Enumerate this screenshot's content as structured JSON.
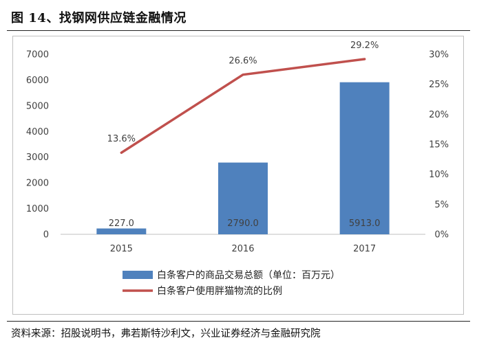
{
  "figure": {
    "title": "图 14、找钢网供应链金融情况",
    "source": "资料来源：招股说明书，弗若斯特沙利文，兴业证券经济与金融研究院"
  },
  "chart_data": {
    "type": "bar+line",
    "categories": [
      "2015",
      "2016",
      "2017"
    ],
    "series": [
      {
        "name": "白条客户的商品交易总额（单位：百万元）",
        "type": "bar",
        "axis": "left",
        "color": "#4f81bd",
        "values": [
          227.0,
          2790.0,
          5913.0
        ],
        "labels": [
          "227.0",
          "2790.0",
          "5913.0"
        ]
      },
      {
        "name": "白条客户使用胖猫物流的比例",
        "type": "line",
        "axis": "right",
        "color": "#c0504d",
        "values": [
          13.6,
          26.6,
          29.2
        ],
        "labels": [
          "13.6%",
          "26.6%",
          "29.2%"
        ]
      }
    ],
    "y_left": {
      "min": 0,
      "max": 7000,
      "ticks": [
        "0",
        "1000",
        "2000",
        "3000",
        "4000",
        "5000",
        "6000",
        "7000"
      ]
    },
    "y_right": {
      "min": 0,
      "max": 30,
      "ticks": [
        "0%",
        "5%",
        "10%",
        "15%",
        "20%",
        "25%",
        "30%"
      ]
    },
    "legend_position": "bottom-center"
  }
}
